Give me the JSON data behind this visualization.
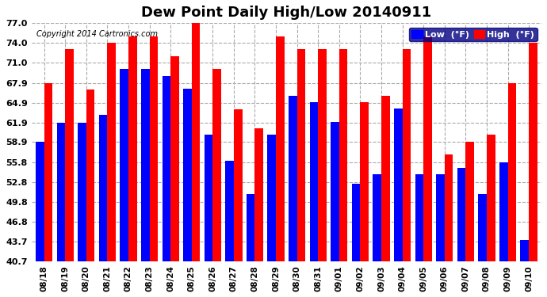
{
  "title": "Dew Point Daily High/Low 20140911",
  "copyright": "Copyright 2014 Cartronics.com",
  "dates": [
    "08/18",
    "08/19",
    "08/20",
    "08/21",
    "08/22",
    "08/23",
    "08/24",
    "08/25",
    "08/26",
    "08/27",
    "08/28",
    "08/29",
    "08/30",
    "08/31",
    "09/01",
    "09/02",
    "09/03",
    "09/04",
    "09/05",
    "09/06",
    "09/07",
    "09/08",
    "09/09",
    "09/10"
  ],
  "low_values": [
    58.9,
    61.9,
    61.9,
    63.0,
    70.0,
    70.0,
    69.0,
    67.0,
    60.0,
    56.0,
    51.0,
    60.0,
    66.0,
    65.0,
    62.0,
    52.5,
    54.0,
    64.0,
    54.0,
    54.0,
    55.0,
    51.0,
    55.8,
    44.0
  ],
  "high_values": [
    67.9,
    73.0,
    66.9,
    74.0,
    75.0,
    75.0,
    72.0,
    77.0,
    70.0,
    63.9,
    61.0,
    75.0,
    73.0,
    73.0,
    73.0,
    65.0,
    65.9,
    73.0,
    75.0,
    57.0,
    58.9,
    60.0,
    67.9,
    74.0
  ],
  "low_color": "#0000ff",
  "high_color": "#ff0000",
  "bg_color": "#ffffff",
  "ylim_min": 40.7,
  "ylim_max": 77.0,
  "yticks": [
    40.7,
    43.7,
    46.8,
    49.8,
    52.8,
    55.8,
    58.9,
    61.9,
    64.9,
    67.9,
    71.0,
    74.0,
    77.0
  ],
  "grid_color": "#aaaaaa",
  "bar_width": 0.4,
  "legend_low_label": "Low  (°F)",
  "legend_high_label": "High  (°F)"
}
